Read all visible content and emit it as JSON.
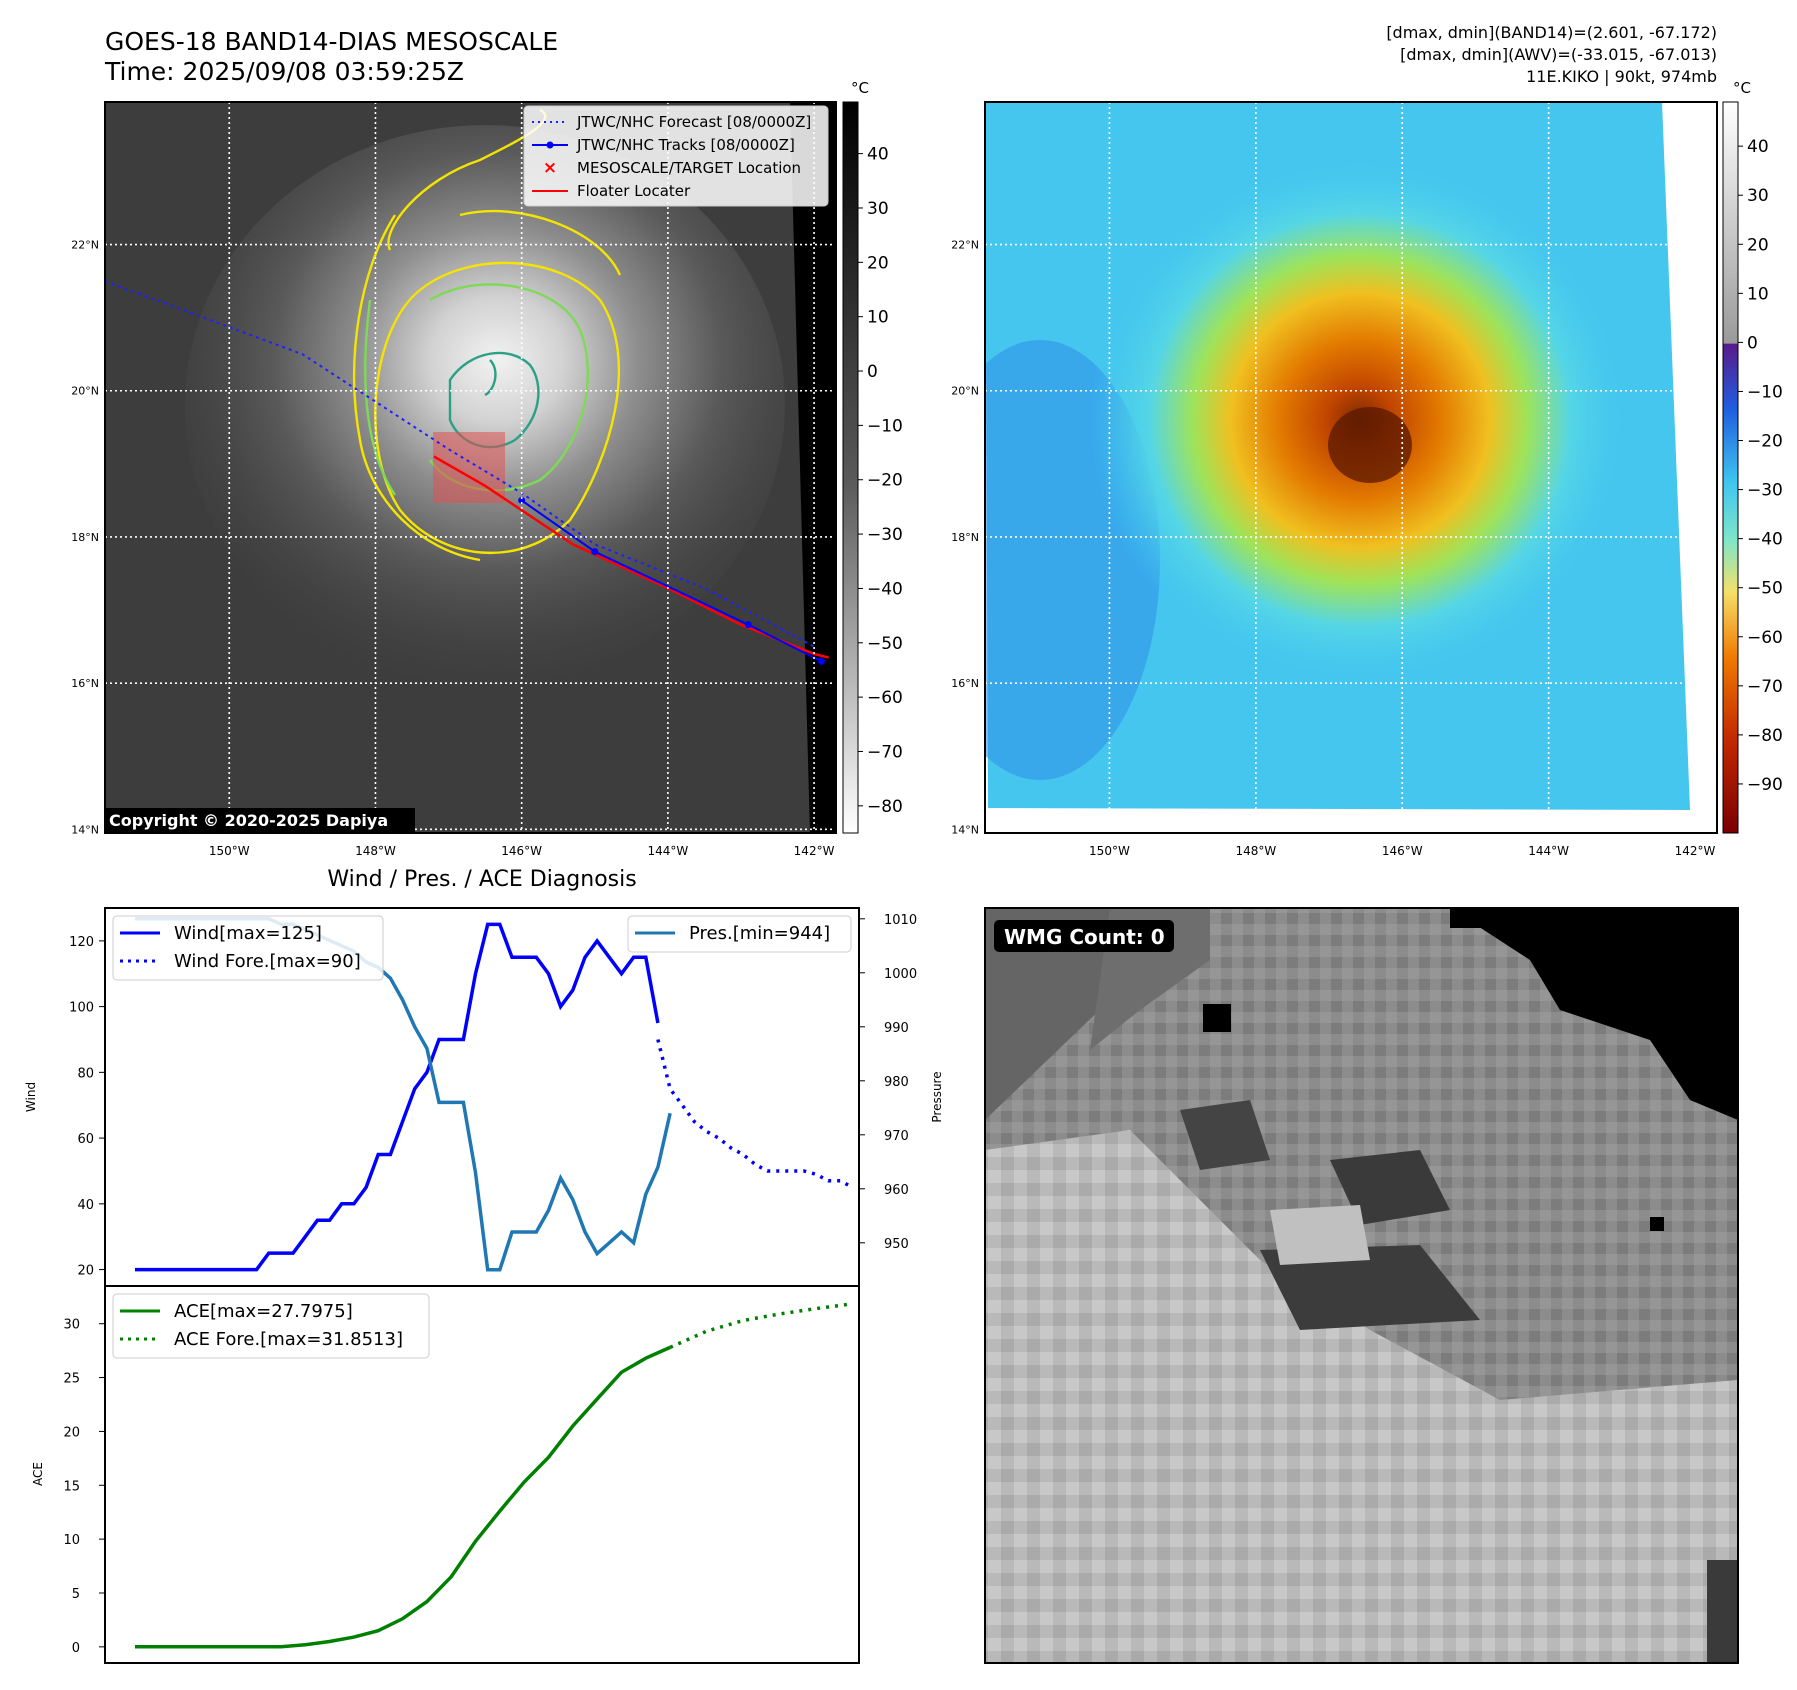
{
  "header": {
    "title_line1": "GOES-18 BAND14-DIAS MESOSCALE",
    "title_line2": "Time: 2025/09/08 03:59:25Z",
    "right_line1": "[dmax, dmin](BAND14)=(2.601, -67.172)",
    "right_line2": "[dmax, dmin](AWV)=(-33.015, -67.013)",
    "right_line3": "11E.KIKO | 90kt, 974mb"
  },
  "maps": {
    "lat_labels": [
      "22°N",
      "20°N",
      "18°N",
      "16°N",
      "14°N"
    ],
    "lat_values": [
      22,
      20,
      18,
      16,
      14
    ],
    "lon_labels": [
      "150°W",
      "148°W",
      "146°W",
      "144°W",
      "142°W"
    ],
    "lon_values": [
      -150,
      -148,
      -146,
      -144,
      -142
    ],
    "copyright": "Copyright © 2020-2025 Dapiya",
    "ir_colorbar": {
      "unit": "°C",
      "ticks": [
        "40",
        "30",
        "20",
        "10",
        "0",
        "−10",
        "−20",
        "−30",
        "−40",
        "−50",
        "−60",
        "−70",
        "−80"
      ],
      "tick_values": [
        40,
        30,
        20,
        10,
        0,
        -10,
        -20,
        -30,
        -40,
        -50,
        -60,
        -70,
        -80
      ]
    },
    "wv_colorbar": {
      "unit": "°C",
      "ticks": [
        "40",
        "30",
        "20",
        "10",
        "0",
        "−10",
        "−20",
        "−30",
        "−40",
        "−50",
        "−60",
        "−70",
        "−80",
        "−90"
      ],
      "tick_values": [
        40,
        30,
        20,
        10,
        0,
        -10,
        -20,
        -30,
        -40,
        -50,
        -60,
        -70,
        -80,
        -90
      ]
    },
    "legend": {
      "forecast": "JTWC/NHC Forecast [08/0000Z]",
      "tracks": "JTWC/NHC Tracks [08/0000Z]",
      "target": "MESOSCALE/TARGET Location",
      "floater": "Floater Locater"
    },
    "forecast_track": [
      [
        -151.7,
        21.5
      ],
      [
        -149,
        20.5
      ],
      [
        -147,
        19.2
      ],
      [
        -146,
        18.6
      ],
      [
        -145,
        17.9
      ],
      [
        -143.5,
        17.3
      ],
      [
        -142,
        16.5
      ]
    ],
    "observed_track": [
      [
        -146.0,
        18.5
      ],
      [
        -145.0,
        17.8
      ],
      [
        -142.9,
        16.8
      ],
      [
        -141.9,
        16.3
      ]
    ],
    "floater_track": [
      [
        -147.2,
        19.1
      ],
      [
        -146.5,
        18.7
      ],
      [
        -145.3,
        17.9
      ],
      [
        -144.0,
        17.3
      ],
      [
        -143.0,
        16.8
      ],
      [
        -142.0,
        16.4
      ],
      [
        -141.8,
        16.35
      ]
    ],
    "wmg_label": "WMG Count: 0"
  },
  "diagnosis": {
    "title": "Wind / Pres. / ACE Diagnosis"
  },
  "chart_data": [
    {
      "type": "line",
      "title": "Wind / Pres. / ACE Diagnosis",
      "ylabel": "Wind",
      "y2label": "Pressure",
      "ylim": [
        15,
        130
      ],
      "y2lim": [
        942,
        1012
      ],
      "xlim": [
        0,
        62
      ],
      "yticks": [
        20,
        40,
        60,
        80,
        100,
        120
      ],
      "y2ticks": [
        950,
        960,
        970,
        980,
        990,
        1000,
        1010
      ],
      "series": [
        {
          "name": "Wind[max=125]",
          "axis": "left",
          "style": "solid",
          "color": "#0000ff",
          "x": [
            0,
            1,
            2,
            3,
            4,
            5,
            6,
            7,
            8,
            9,
            10,
            11,
            12,
            13,
            14,
            15,
            16,
            17,
            18,
            19,
            20,
            21,
            22,
            23,
            24,
            25,
            26,
            27,
            28,
            29,
            30,
            31,
            32,
            33,
            34,
            35,
            36,
            37,
            38,
            39,
            40,
            41,
            42,
            43
          ],
          "values": [
            20,
            20,
            20,
            20,
            20,
            20,
            20,
            20,
            20,
            20,
            20,
            25,
            25,
            25,
            30,
            35,
            35,
            40,
            40,
            45,
            55,
            55,
            65,
            75,
            80,
            90,
            90,
            90,
            110,
            125,
            125,
            115,
            115,
            115,
            110,
            100,
            105,
            115,
            120,
            115,
            110,
            115,
            115,
            95
          ]
        },
        {
          "name": "Wind Fore.[max=90]",
          "axis": "left",
          "style": "dotted",
          "color": "#0000ff",
          "x": [
            43,
            44,
            45,
            46,
            47,
            48,
            49,
            50,
            51,
            52,
            53,
            54,
            55,
            56,
            57,
            58,
            59
          ],
          "values": [
            90,
            75,
            70,
            65,
            62,
            60,
            57,
            55,
            52,
            50,
            50,
            50,
            50,
            49,
            47,
            47,
            45
          ]
        },
        {
          "name": "Pres.[min=944]",
          "axis": "right",
          "style": "solid",
          "color": "#1f77b4",
          "x": [
            0,
            2,
            4,
            6,
            8,
            9,
            10,
            11,
            12,
            13,
            14,
            15,
            16,
            17,
            18,
            19,
            20,
            21,
            22,
            23,
            24,
            25,
            26,
            27,
            28,
            29,
            30,
            31,
            32,
            33,
            34,
            35,
            36,
            37,
            38,
            39,
            40,
            41,
            42,
            43,
            44
          ],
          "values": [
            1010,
            1010,
            1010,
            1010,
            1010,
            1010,
            1010,
            1010,
            1009,
            1009,
            1008,
            1007,
            1006,
            1005,
            1004,
            1002,
            1001,
            999,
            995,
            990,
            986,
            976,
            976,
            976,
            963,
            945,
            945,
            952,
            952,
            952,
            956,
            962,
            958,
            952,
            948,
            950,
            952,
            950,
            959,
            964,
            974
          ]
        }
      ]
    },
    {
      "type": "line",
      "ylabel": "ACE",
      "ylim": [
        -1.5,
        33.5
      ],
      "xlim": [
        0,
        62
      ],
      "yticks": [
        0,
        5,
        10,
        15,
        20,
        25,
        30
      ],
      "series": [
        {
          "name": "ACE[max=27.7975]",
          "style": "solid",
          "color": "#008000",
          "x": [
            0,
            2,
            4,
            6,
            8,
            10,
            12,
            14,
            16,
            18,
            20,
            22,
            24,
            26,
            28,
            30,
            32,
            34,
            36,
            38,
            40,
            42,
            44
          ],
          "values": [
            0,
            0,
            0,
            0,
            0,
            0,
            0,
            0.2,
            0.5,
            0.9,
            1.5,
            2.6,
            4.2,
            6.5,
            9.8,
            12.6,
            15.3,
            17.6,
            20.5,
            23.0,
            25.5,
            26.8,
            27.8
          ]
        },
        {
          "name": "ACE Fore.[max=31.8513]",
          "style": "dotted",
          "color": "#008000",
          "x": [
            44,
            47,
            50,
            53,
            56,
            59
          ],
          "values": [
            27.8,
            29.3,
            30.3,
            30.9,
            31.4,
            31.85
          ]
        }
      ]
    }
  ],
  "wmg_panel": {
    "label": "WMG Count: 0"
  }
}
